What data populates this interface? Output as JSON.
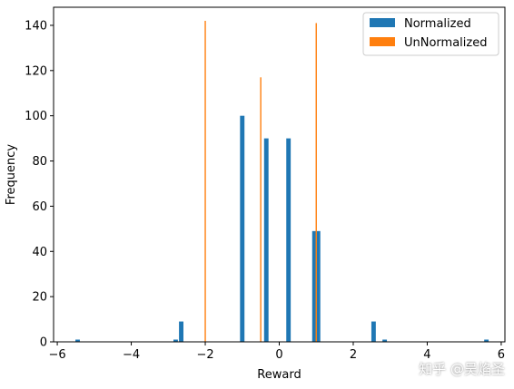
{
  "chart_data": {
    "type": "bar",
    "xlabel": "Reward",
    "ylabel": "Frequency",
    "xlim": [
      -6.1,
      6.1
    ],
    "ylim": [
      0,
      148
    ],
    "x_ticks": [
      -6,
      -4,
      -2,
      0,
      2,
      4,
      6
    ],
    "x_tick_labels": [
      "−6",
      "−4",
      "−2",
      "0",
      "2",
      "4",
      "6"
    ],
    "y_ticks": [
      0,
      20,
      40,
      60,
      80,
      100,
      120,
      140
    ],
    "y_tick_labels": [
      "0",
      "20",
      "40",
      "60",
      "80",
      "100",
      "120",
      "140"
    ],
    "legend_position": "top-right",
    "series": [
      {
        "name": "Normalized",
        "color": "#1f77b4",
        "bins": [
          {
            "x": -5.45,
            "value": 1
          },
          {
            "x": -2.8,
            "value": 1
          },
          {
            "x": -2.65,
            "value": 9
          },
          {
            "x": -1.0,
            "value": 100
          },
          {
            "x": -0.35,
            "value": 90
          },
          {
            "x": 0.25,
            "value": 90
          },
          {
            "x": 0.95,
            "value": 49
          },
          {
            "x": 1.05,
            "value": 49
          },
          {
            "x": 2.55,
            "value": 9
          },
          {
            "x": 2.85,
            "value": 1
          },
          {
            "x": 5.6,
            "value": 1
          }
        ]
      },
      {
        "name": "UnNormalized",
        "color": "#ff7f0e",
        "bins": [
          {
            "x": -2.0,
            "value": 142
          },
          {
            "x": -0.5,
            "value": 117
          },
          {
            "x": 1.0,
            "value": 141
          }
        ]
      }
    ]
  },
  "watermark": "知乎 @吴焰圣"
}
